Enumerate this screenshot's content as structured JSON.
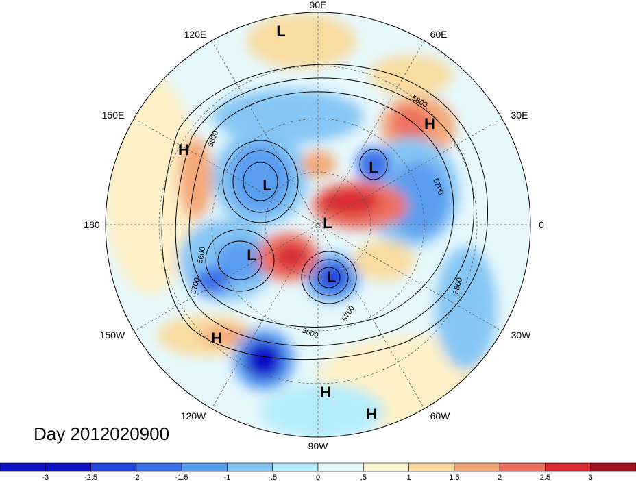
{
  "map": {
    "longitude_labels": [
      "90E",
      "60E",
      "30E",
      "0",
      "30W",
      "60W",
      "90W",
      "120W",
      "150W",
      "180",
      "150E",
      "120E"
    ],
    "contour_labels": [
      "5800",
      "5700",
      "5600",
      "5700",
      "5800",
      "5600",
      "5700",
      "5800"
    ],
    "pressure_systems": [
      "L",
      "L",
      "L",
      "L",
      "L",
      "L",
      "H",
      "H",
      "H",
      "H",
      "H"
    ],
    "date_label": "Day 2012020900"
  },
  "colorbar": {
    "ticks": [
      "-3",
      "-2.5",
      "-2",
      "-1.5",
      "-1",
      "-.5",
      "0",
      ".5",
      "1",
      "1.5",
      "2",
      "2.5",
      "3"
    ],
    "colors": [
      "#1010c8",
      "#2244dd",
      "#3a6ee8",
      "#5a9ef0",
      "#86c6f4",
      "#b6ecfa",
      "#e6f8fc",
      "#fdf6d0",
      "#f8dca0",
      "#f4a878",
      "#ee7060",
      "#d82c30",
      "#a01020"
    ]
  }
}
